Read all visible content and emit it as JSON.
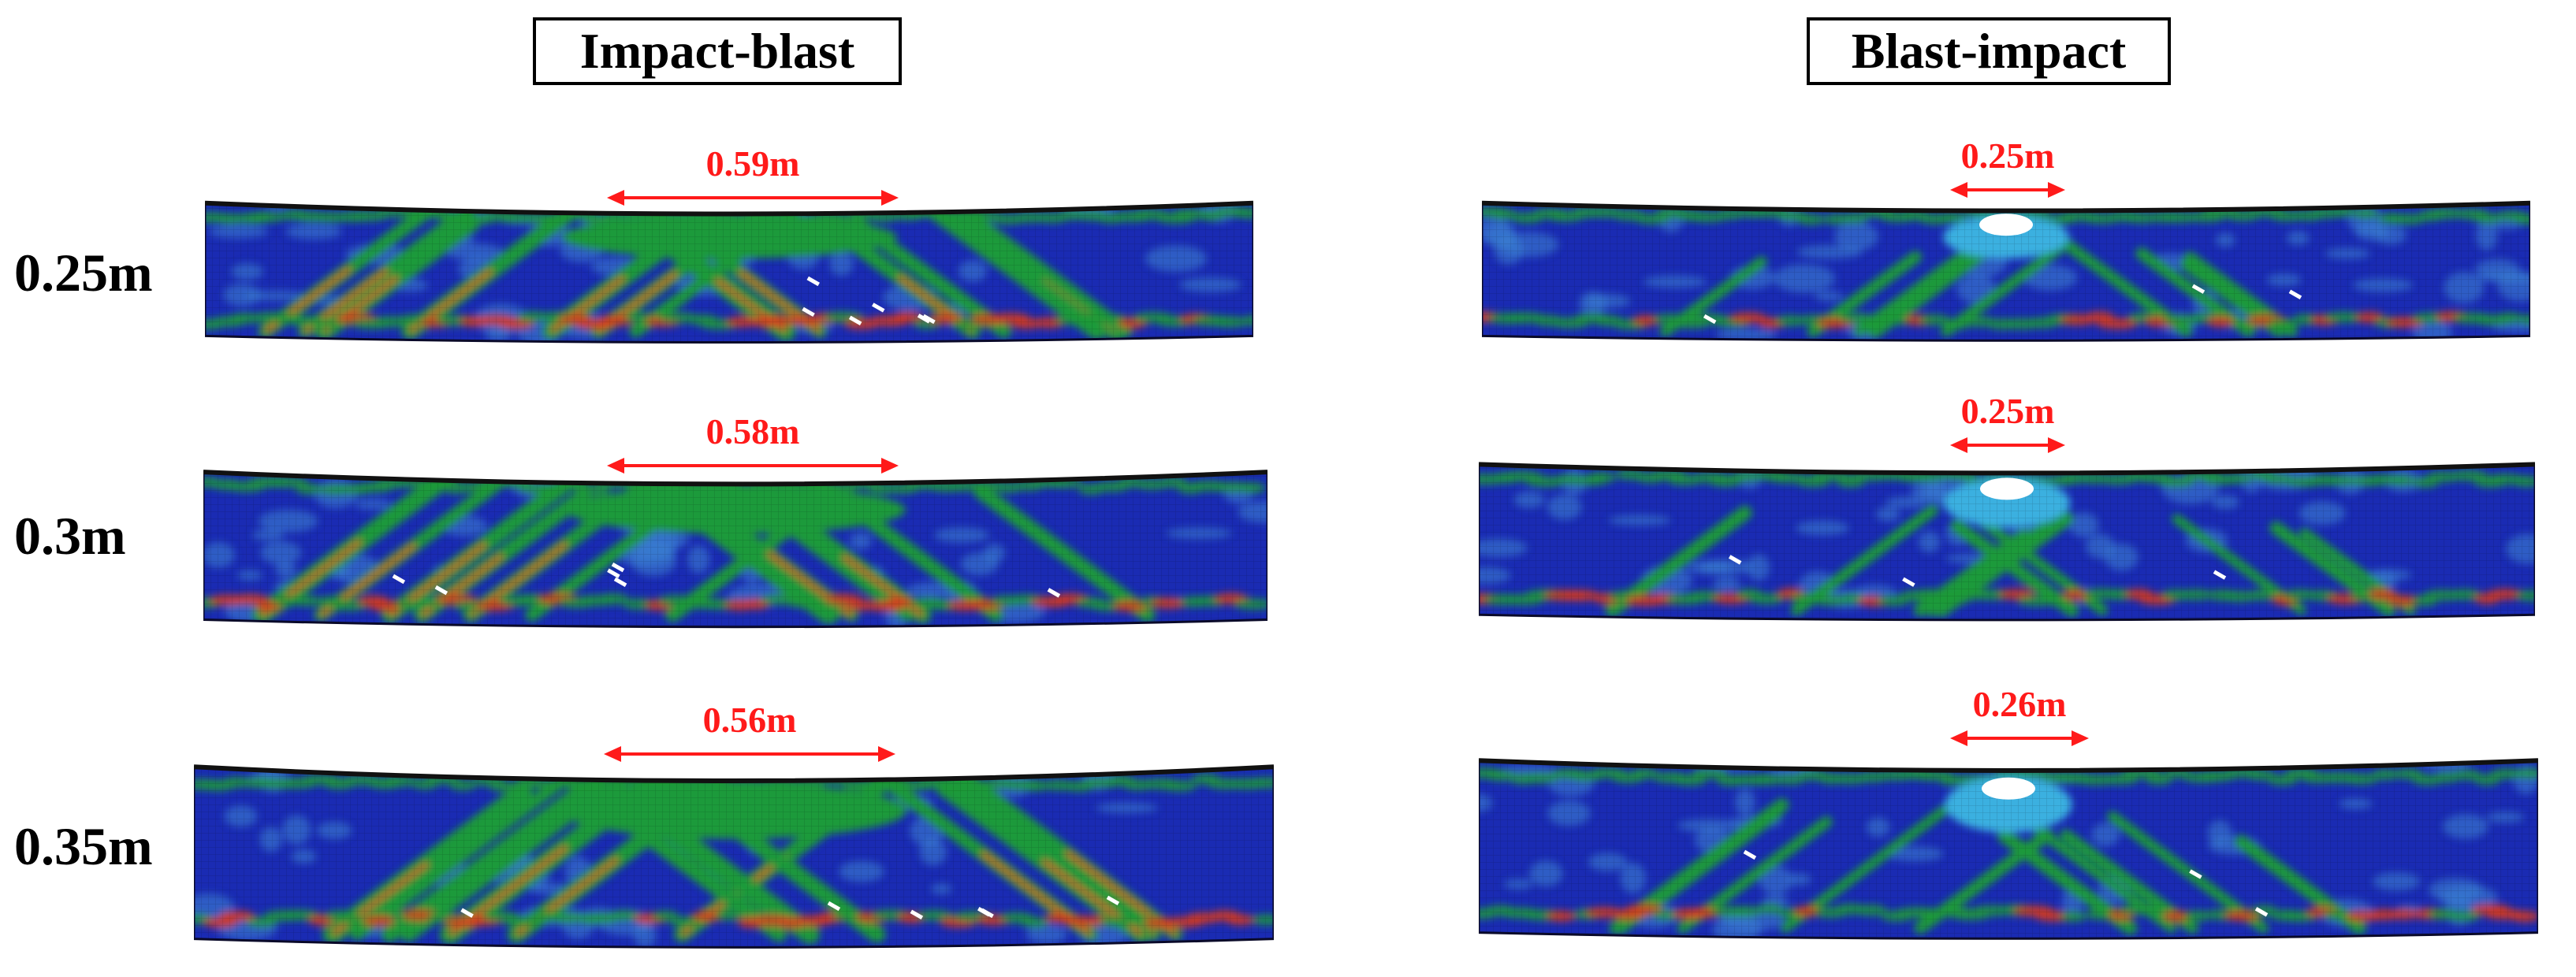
{
  "columns": {
    "left_title": "Impact-blast",
    "right_title": "Blast-impact"
  },
  "rows": [
    {
      "label": "0.25m",
      "left_width": "0.59m",
      "right_width": "0.25m"
    },
    {
      "label": "0.3m",
      "left_width": "0.58m",
      "right_width": "0.25m"
    },
    {
      "label": "0.35m",
      "left_width": "0.56m",
      "right_width": "0.26m"
    }
  ],
  "colors": {
    "damage_annotation": "#ff1a1a",
    "contour_base": "#1a2bb3",
    "contour_mid": "#1f9a3a",
    "contour_high": "#d93a1a"
  }
}
